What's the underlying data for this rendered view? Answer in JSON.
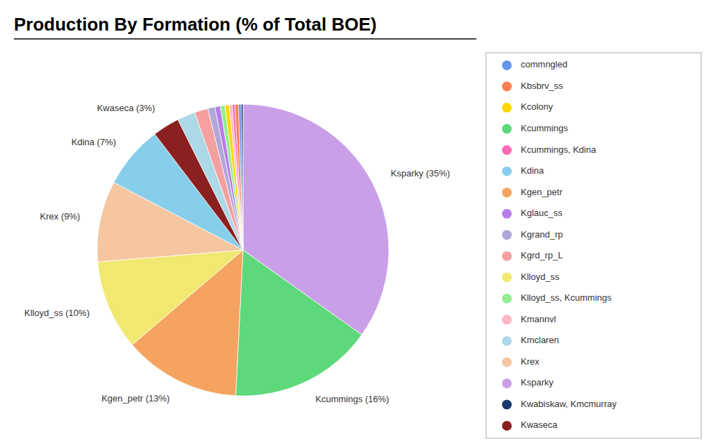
{
  "chart_data": {
    "type": "pie",
    "title": "Production By Formation (% of Total BOE)",
    "categories": [
      "Ksparky",
      "Kcummings",
      "Kgen_petr",
      "Klloyd_ss",
      "Krex",
      "Kdina",
      "Kwaseca",
      "Kmclaren",
      "Kgrd_rp_L",
      "Kgrand_rp",
      "Kglauc_ss",
      "Klloyd_ss, Kcummings",
      "Kcolony",
      "Kmannvl",
      "Kcummings, Kdina",
      "Kbsbrv_ss",
      "commngled",
      "Kwabiskaw, Kmcmurray"
    ],
    "values": [
      35,
      16,
      13,
      10,
      9,
      7,
      3,
      2,
      1.5,
      0.8,
      0.6,
      0.5,
      0.5,
      0.3,
      0.3,
      0.4,
      0.3,
      0.2
    ],
    "value_labels": [
      "Ksparky (35%)",
      "Kcummings (16%)",
      "Kgen_petr (13%)",
      "Klloyd_ss (10%)",
      "Krex (9%)",
      "Kdina (7%)",
      "Kwaseca (3%)",
      null,
      null,
      null,
      null,
      null,
      null,
      null,
      null,
      null,
      null,
      null
    ],
    "colors": [
      "#C9A0E8",
      "#5DD87A",
      "#F4A460",
      "#F0E870",
      "#F5C6A0",
      "#87CEEB",
      "#8B2020",
      "#ADD8E6",
      "#F4A0A0",
      "#B0A8D8",
      "#B87DE8",
      "#90EE90",
      "#FFD700",
      "#FFB6C1",
      "#FF69B4",
      "#FF7F50",
      "#6495ED",
      "#1C3A6E"
    ],
    "data_labels": true,
    "legend": "right",
    "legend_entries": [
      "commngled",
      "Kbsbrv_ss",
      "Kcolony",
      "Kcummings",
      "Kcummings, Kdina",
      "Kdina",
      "Kgen_petr",
      "Kglauc_ss",
      "Kgrand_rp",
      "Kgrd_rp_L",
      "Klloyd_ss",
      "Klloyd_ss, Kcummings",
      "Kmannvl",
      "Kmclaren",
      "Krex",
      "Ksparky",
      "Kwabiskaw, Kmcmurray",
      "Kwaseca"
    ]
  }
}
